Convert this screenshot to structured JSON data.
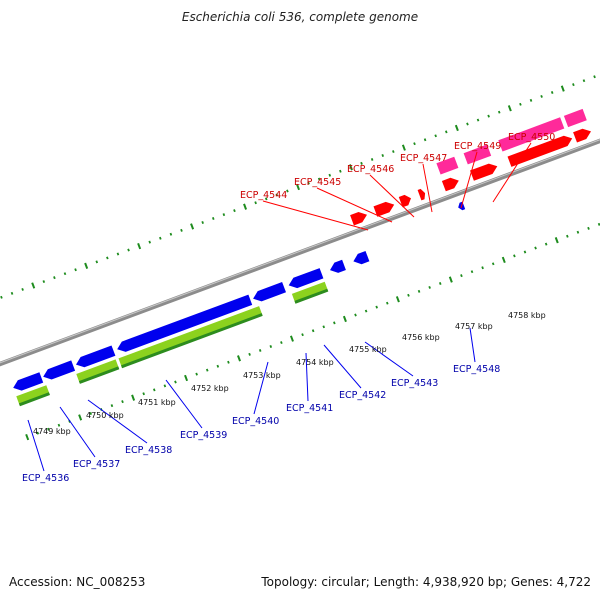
{
  "title": "Escherichia coli 536, complete genome",
  "footer": {
    "accession": "Accession: NC_008253",
    "summary": "Topology: circular; Length: 4,938,920 bp; Genes: 4,722"
  },
  "colors": {
    "backbone": "#8c8c8c",
    "tick": "#1e8c1e",
    "forward_cds": "#ff0000",
    "forward_rna": "#ff2a9a",
    "reverse_cds": "#0000ee",
    "reverse_rna": "#8cd21e",
    "reverse_rna_dark": "#2d8c1e",
    "forward_label": "#cc0000",
    "reverse_label": "#0000aa"
  },
  "scale": {
    "unit": "kbp",
    "ticks": [
      {
        "label": "4749 kbp",
        "value": 4749
      },
      {
        "label": "4750 kbp",
        "value": 4750
      },
      {
        "label": "4751 kbp",
        "value": 4751
      },
      {
        "label": "4752 kbp",
        "value": 4752
      },
      {
        "label": "4753 kbp",
        "value": 4753
      },
      {
        "label": "4754 kbp",
        "value": 4754
      },
      {
        "label": "4755 kbp",
        "value": 4755
      },
      {
        "label": "4756 kbp",
        "value": 4756
      },
      {
        "label": "4757 kbp",
        "value": 4757
      },
      {
        "label": "4758 kbp",
        "value": 4758
      }
    ]
  },
  "forward_genes": [
    {
      "label": "ECP_4544"
    },
    {
      "label": "ECP_4545"
    },
    {
      "label": "ECP_4546"
    },
    {
      "label": "ECP_4547"
    },
    {
      "label": "ECP_4549"
    },
    {
      "label": "ECP_4550"
    }
  ],
  "reverse_genes": [
    {
      "label": "ECP_4536"
    },
    {
      "label": "ECP_4537"
    },
    {
      "label": "ECP_4538"
    },
    {
      "label": "ECP_4539"
    },
    {
      "label": "ECP_4540"
    },
    {
      "label": "ECP_4541"
    },
    {
      "label": "ECP_4542"
    },
    {
      "label": "ECP_4543"
    },
    {
      "label": "ECP_4548"
    }
  ]
}
